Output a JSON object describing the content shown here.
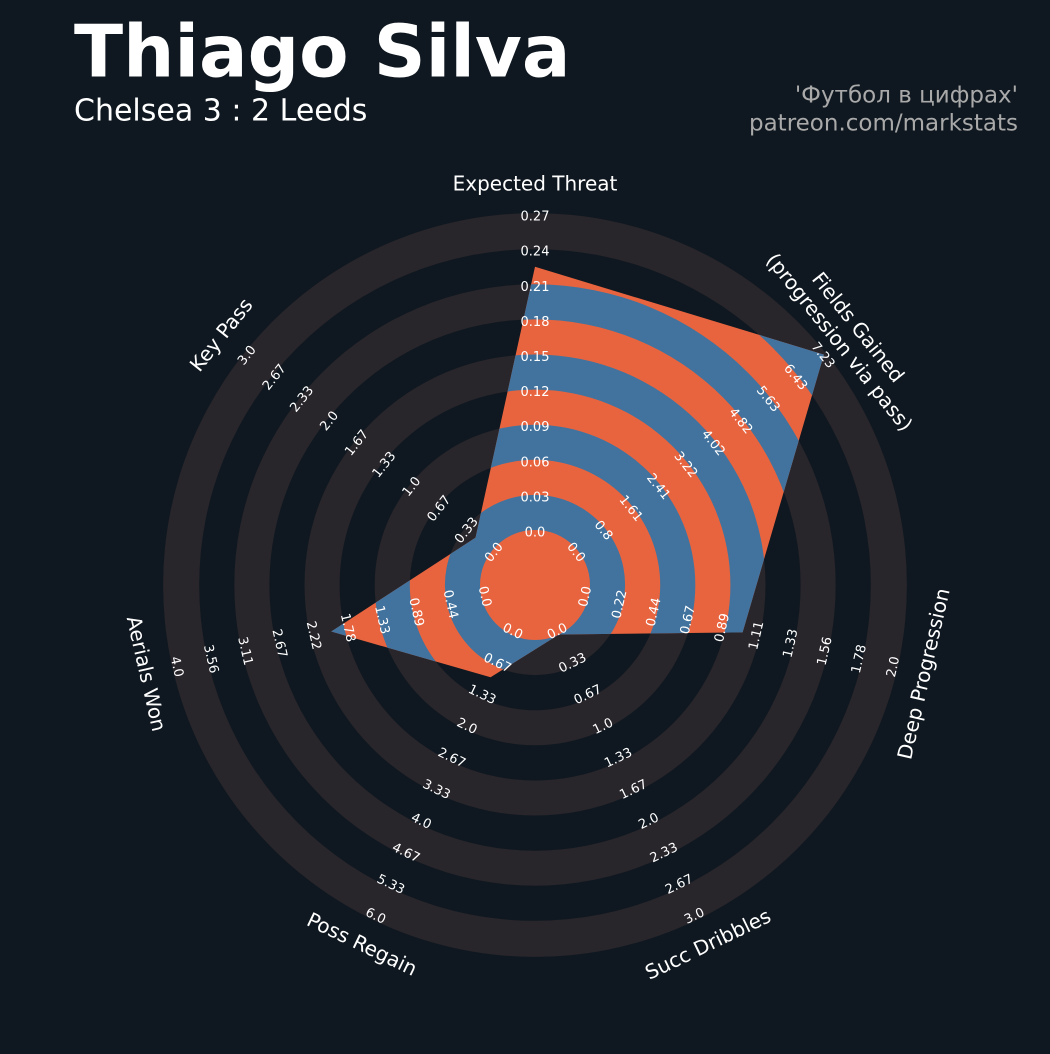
{
  "chart_data": {
    "type": "radar",
    "title": "Thiago Silva",
    "subtitle": "Chelsea 3 : 2 Leeds",
    "credits": [
      "'Футбол в цифрах'",
      "patreon.com/markstats"
    ],
    "colors": {
      "fill_a": "#e8643f",
      "fill_b": "#41739e",
      "ring": "#28252b"
    },
    "axes": [
      {
        "label": "Expected Threat",
        "value": 0.225,
        "ticks": [
          {
            "value": 0,
            "label": "0.0"
          },
          0.03,
          0.06,
          0.09,
          0.12,
          0.15,
          0.18,
          0.21,
          0.24,
          0.27
        ]
      },
      {
        "label": [
          "Fields Gained",
          "(progression via pass)"
        ],
        "value": 7.2,
        "ticks": [
          {
            "value": 0,
            "label": "0.0"
          },
          0.8,
          1.61,
          2.41,
          3.22,
          4.02,
          4.82,
          5.63,
          6.43,
          7.23
        ]
      },
      {
        "label": "Deep Progression",
        "value": 1.0,
        "ticks": [
          {
            "value": 0,
            "label": "0.0"
          },
          0.22,
          0.44,
          0.67,
          0.89,
          1.11,
          1.33,
          1.56,
          1.78,
          {
            "value": 2,
            "label": "2.0"
          }
        ]
      },
      {
        "label": "Succ Dribbles",
        "value": 0,
        "ticks": [
          {
            "value": 0,
            "label": "0.0"
          },
          0.33,
          0.67,
          {
            "value": 1,
            "label": "1.0"
          },
          1.33,
          1.67,
          {
            "value": 2,
            "label": "2.0"
          },
          2.33,
          2.67,
          {
            "value": 3,
            "label": "3.0"
          }
        ]
      },
      {
        "label": "Poss Regain",
        "value": 0.9,
        "ticks": [
          {
            "value": 0,
            "label": "0.0"
          },
          0.67,
          1.33,
          {
            "value": 2,
            "label": "2.0"
          },
          2.67,
          3.33,
          {
            "value": 4,
            "label": "4.0"
          },
          4.67,
          5.33,
          {
            "value": 6,
            "label": "6.0"
          }
        ]
      },
      {
        "label": "Aerials Won",
        "value": 1.95,
        "ticks": [
          {
            "value": 0,
            "label": "0.0"
          },
          0.44,
          0.89,
          1.33,
          1.78,
          2.22,
          2.67,
          3.11,
          3.56,
          {
            "value": 4,
            "label": "4.0"
          }
        ]
      },
      {
        "label": "Key Pass",
        "value": 0.2,
        "ticks": [
          {
            "value": 0,
            "label": "0.0"
          },
          0.33,
          0.67,
          {
            "value": 1,
            "label": "1.0"
          },
          1.33,
          1.67,
          {
            "value": 2,
            "label": "2.0"
          },
          2.33,
          2.67,
          {
            "value": 3,
            "label": "3.0"
          }
        ]
      }
    ]
  }
}
